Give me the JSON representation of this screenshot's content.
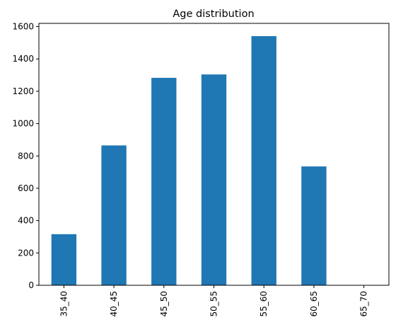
{
  "chart_data": {
    "type": "bar",
    "title": "Age distribution",
    "xlabel": "",
    "ylabel": "",
    "categories": [
      "35_40",
      "40_45",
      "45_50",
      "50_55",
      "55_60",
      "60_65",
      "65_70"
    ],
    "values": [
      316,
      865,
      1283,
      1304,
      1541,
      735,
      0
    ],
    "ylim": [
      0,
      1620
    ],
    "yticks": [
      0,
      200,
      400,
      600,
      800,
      1000,
      1200,
      1400,
      1600
    ],
    "grid": false,
    "legend": "none",
    "x_tick_rotation": "vertical",
    "bar_color": "#1f77b4"
  }
}
